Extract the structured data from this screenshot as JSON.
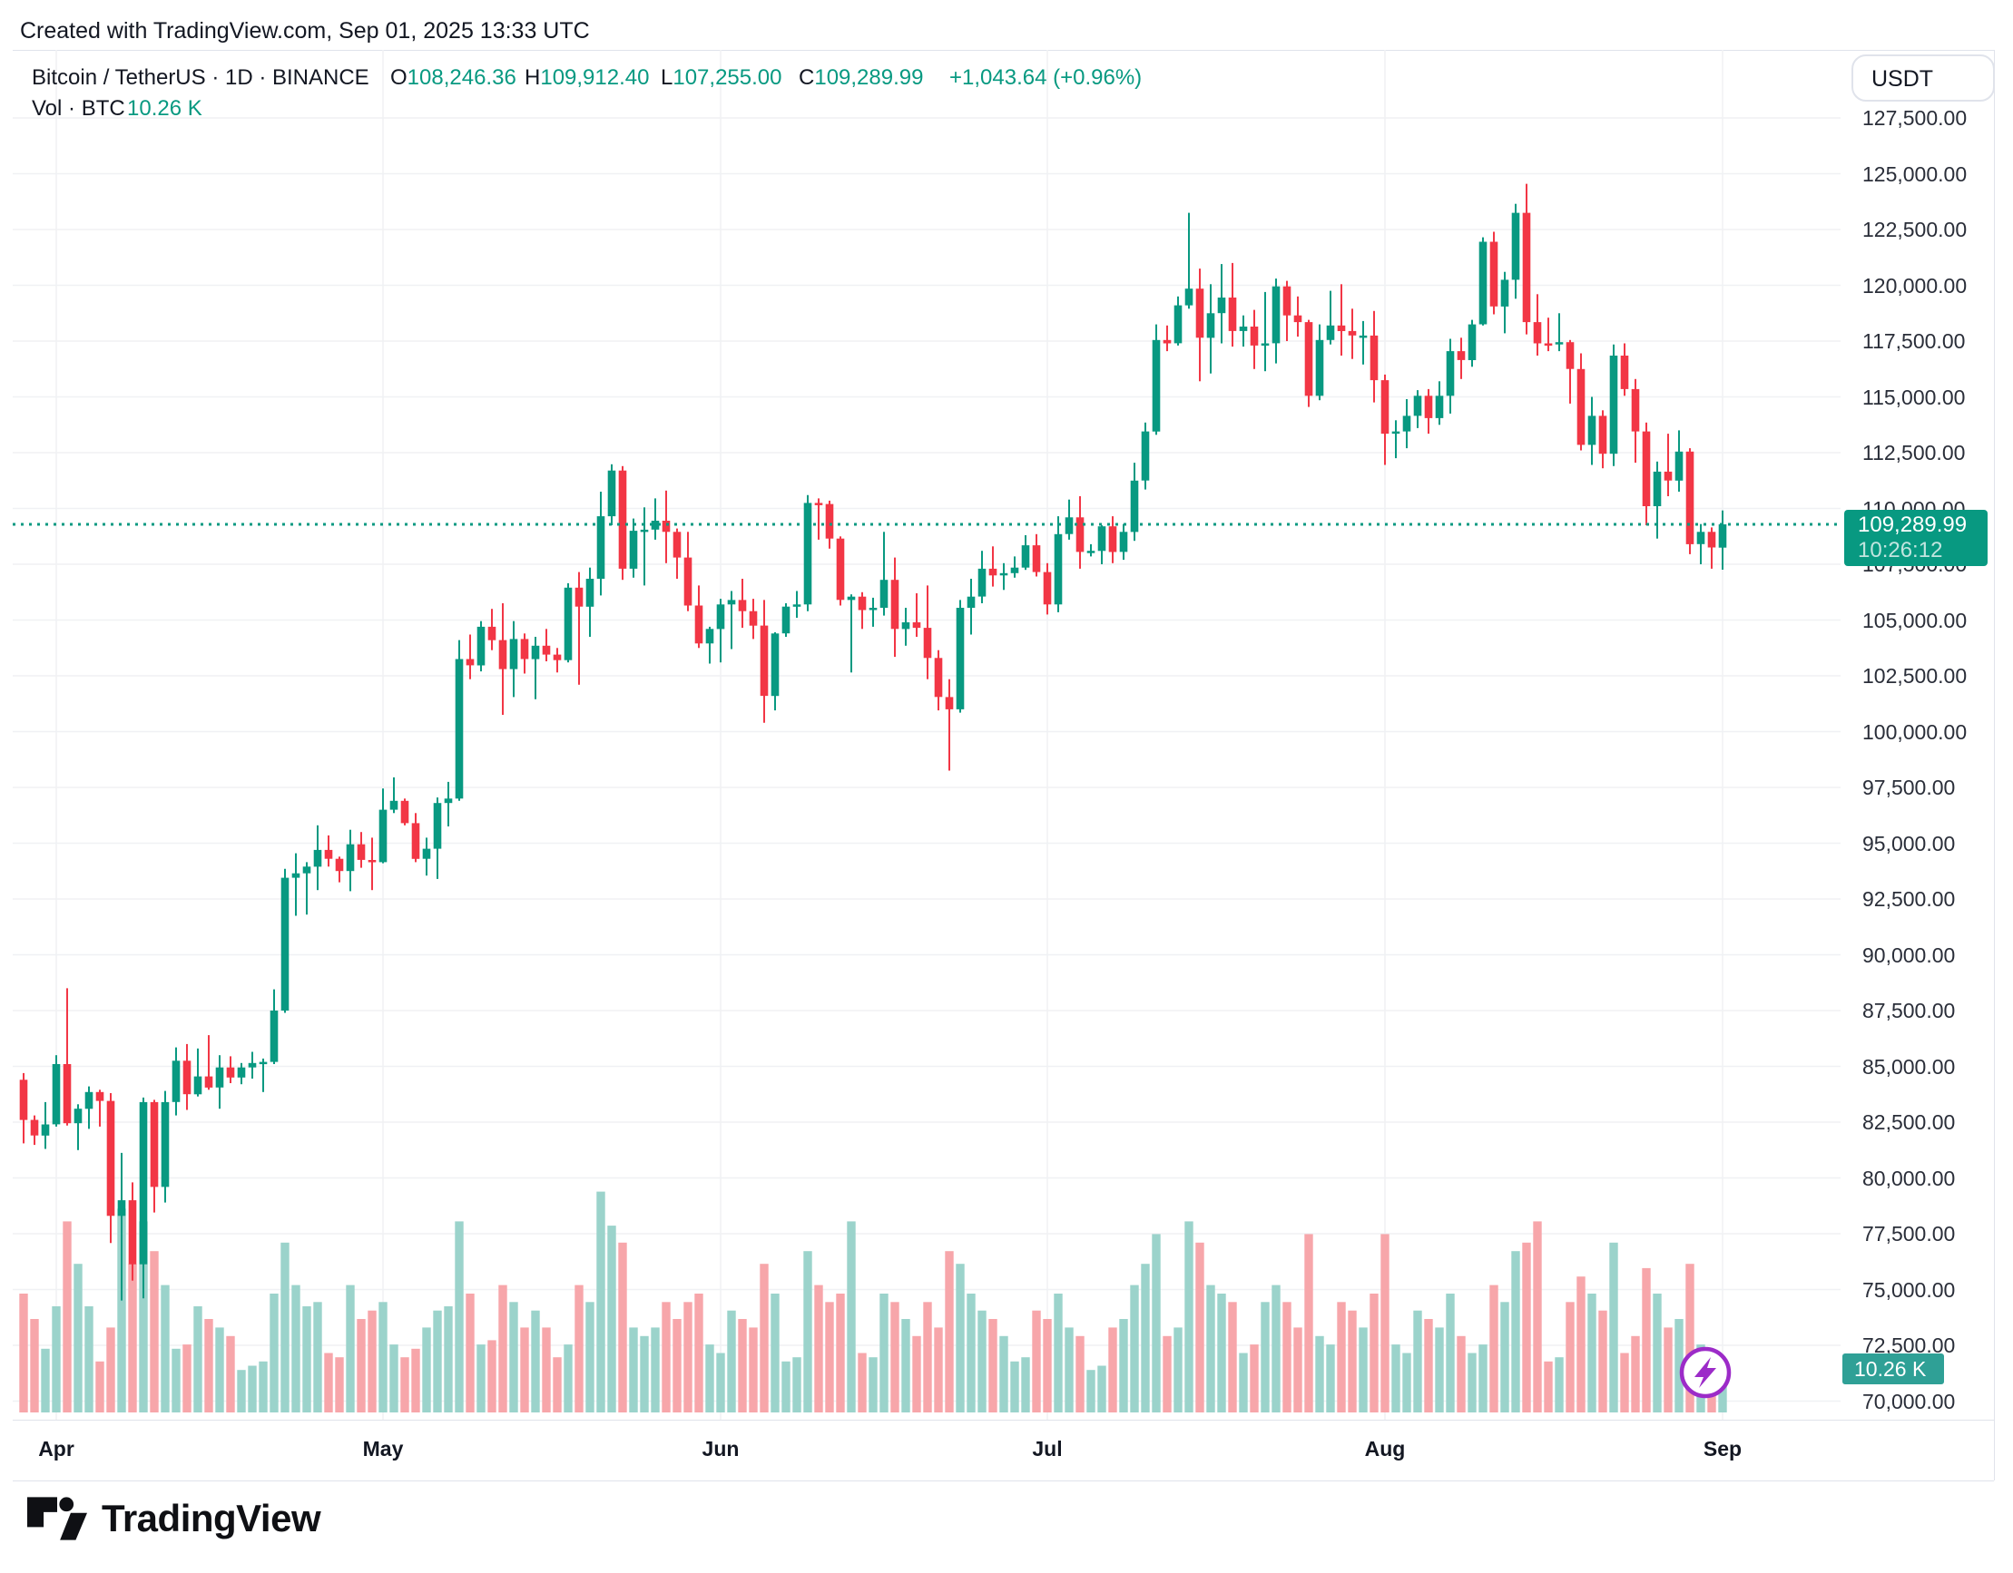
{
  "header": {
    "credit": "Created with TradingView.com, Sep 01, 2025 13:33 UTC"
  },
  "legend": {
    "symbol_title": "Bitcoin / TetherUS · 1D · BINANCE",
    "ohlc": {
      "o_label": "O",
      "o": "108,246.36",
      "h_label": "H",
      "h": "109,912.40",
      "l_label": "L",
      "l": "107,255.00",
      "c_label": "C",
      "c": "109,289.99",
      "change": "+1,043.64 (+0.96%)"
    },
    "volume_label": "Vol · BTC",
    "volume_value": "10.26 K"
  },
  "toolbar": {
    "currency_button": "USDT"
  },
  "price_axis": {
    "last_price_badge": {
      "price": "109,289.99",
      "countdown": "10:26:12"
    },
    "volume_badge": "10.26 K"
  },
  "time_axis": {
    "months": [
      "Apr",
      "May",
      "Jun",
      "Jul",
      "Aug",
      "Sep"
    ]
  },
  "footer": {
    "brand": "TradingView"
  },
  "colors": {
    "up": "#089981",
    "down": "#F23645",
    "vol_up": "#9BD3CB",
    "vol_down": "#F7A6AA",
    "grid": "#f0f1f4",
    "accent": "#089981",
    "marker_purple": "#9C2BC8",
    "axis_text": "#2a2e39"
  },
  "chart_data": {
    "type": "candlestick_with_volume",
    "title": "Bitcoin / TetherUS",
    "interval": "1D",
    "exchange": "BINANCE",
    "quote_currency": "USDT",
    "y_axis": {
      "min": 70000,
      "max": 127500,
      "tick_step": 2500,
      "grid": true
    },
    "volume_unit": "K BTC",
    "last_price": 109289.99,
    "price_line": {
      "value": 109289.99,
      "countdown": "10:26:12",
      "style": "dotted"
    },
    "month_ticks": {
      "labels": [
        "Apr",
        "May",
        "Jun",
        "Jul",
        "Aug",
        "Sep"
      ],
      "candle_indices": [
        3,
        33,
        64,
        94,
        125,
        156
      ]
    },
    "candles_format": [
      "open",
      "high",
      "low",
      "close",
      "volume_K"
    ],
    "candles": [
      [
        84400,
        84700,
        81550,
        82600,
        28
      ],
      [
        82600,
        82800,
        81480,
        81900,
        22
      ],
      [
        81900,
        83400,
        81300,
        82400,
        15
      ],
      [
        82400,
        85500,
        82300,
        85100,
        25
      ],
      [
        85100,
        88500,
        82350,
        82450,
        45
      ],
      [
        82450,
        83300,
        81250,
        83100,
        35
      ],
      [
        83100,
        84100,
        82200,
        83850,
        25
      ],
      [
        83850,
        83950,
        82300,
        83450,
        12
      ],
      [
        83450,
        83800,
        77080,
        78300,
        20
      ],
      [
        78300,
        81120,
        74508,
        79000,
        48
      ],
      [
        79000,
        79800,
        75400,
        76130,
        35
      ],
      [
        76130,
        83600,
        74600,
        83400,
        45
      ],
      [
        83400,
        83500,
        78450,
        79600,
        38
      ],
      [
        79600,
        83900,
        78900,
        83400,
        30
      ],
      [
        83400,
        85850,
        82800,
        85250,
        15
      ],
      [
        85250,
        86000,
        83050,
        83750,
        16
      ],
      [
        83750,
        85800,
        83650,
        84550,
        25
      ],
      [
        84550,
        86400,
        83950,
        84050,
        22
      ],
      [
        84050,
        85500,
        83100,
        84950,
        20
      ],
      [
        84950,
        85450,
        84250,
        84500,
        18
      ],
      [
        84500,
        85150,
        84200,
        84950,
        10
      ],
      [
        84950,
        85650,
        84450,
        85150,
        11
      ],
      [
        85150,
        85350,
        83850,
        85200,
        12
      ],
      [
        85200,
        88450,
        85100,
        87500,
        28
      ],
      [
        87500,
        93850,
        87400,
        93450,
        40
      ],
      [
        93450,
        94550,
        91750,
        93650,
        30
      ],
      [
        93650,
        94150,
        91800,
        93950,
        25
      ],
      [
        93950,
        95800,
        92900,
        94700,
        26
      ],
      [
        94700,
        95350,
        93950,
        94300,
        14
      ],
      [
        94300,
        94400,
        93250,
        93750,
        13
      ],
      [
        93750,
        95600,
        92850,
        94950,
        30
      ],
      [
        94950,
        95500,
        93900,
        94250,
        22
      ],
      [
        94250,
        95250,
        92900,
        94150,
        24
      ],
      [
        94150,
        97450,
        94100,
        96500,
        26
      ],
      [
        96500,
        97950,
        96350,
        96900,
        16
      ],
      [
        96900,
        97000,
        95800,
        95900,
        13
      ],
      [
        95900,
        96350,
        94150,
        94300,
        15
      ],
      [
        94300,
        95250,
        93550,
        94750,
        20
      ],
      [
        94750,
        97050,
        93400,
        96800,
        24
      ],
      [
        96800,
        97750,
        95750,
        97000,
        25
      ],
      [
        97000,
        104100,
        96900,
        103250,
        45
      ],
      [
        103250,
        104350,
        102350,
        102970,
        28
      ],
      [
        102970,
        104950,
        102700,
        104700,
        16
      ],
      [
        104700,
        105500,
        103650,
        104100,
        17
      ],
      [
        104100,
        105750,
        100750,
        102800,
        30
      ],
      [
        102800,
        104950,
        101550,
        104150,
        26
      ],
      [
        104150,
        104400,
        102600,
        103250,
        20
      ],
      [
        103250,
        104250,
        101450,
        103850,
        24
      ],
      [
        103850,
        104600,
        103150,
        103450,
        20
      ],
      [
        103450,
        103750,
        102650,
        103200,
        13
      ],
      [
        103200,
        106650,
        103100,
        106450,
        16
      ],
      [
        106450,
        107150,
        102100,
        105600,
        30
      ],
      [
        105600,
        107350,
        104250,
        106850,
        26
      ],
      [
        106850,
        110750,
        106100,
        109650,
        52
      ],
      [
        109650,
        111980,
        109250,
        111700,
        44
      ],
      [
        111700,
        111900,
        106800,
        107300,
        40
      ],
      [
        107300,
        109550,
        106900,
        109000,
        20
      ],
      [
        109000,
        110050,
        106550,
        109050,
        18
      ],
      [
        109050,
        110450,
        108600,
        109450,
        20
      ],
      [
        109450,
        110800,
        107550,
        108950,
        26
      ],
      [
        108950,
        109100,
        106850,
        107800,
        22
      ],
      [
        107800,
        108950,
        105400,
        105650,
        26
      ],
      [
        105650,
        106550,
        103750,
        103950,
        28
      ],
      [
        103950,
        104700,
        103050,
        104600,
        16
      ],
      [
        104600,
        105950,
        103100,
        105700,
        14
      ],
      [
        105700,
        106300,
        103700,
        105900,
        24
      ],
      [
        105900,
        106850,
        104650,
        105400,
        22
      ],
      [
        105400,
        105950,
        104150,
        104750,
        20
      ],
      [
        104750,
        105900,
        100400,
        101600,
        35
      ],
      [
        101600,
        104450,
        100950,
        104400,
        28
      ],
      [
        104400,
        105750,
        104250,
        105600,
        12
      ],
      [
        105600,
        106300,
        105100,
        105700,
        13
      ],
      [
        105700,
        110600,
        105400,
        110250,
        38
      ],
      [
        110250,
        110450,
        108600,
        110200,
        30
      ],
      [
        110200,
        110350,
        108200,
        108650,
        26
      ],
      [
        108650,
        108750,
        105650,
        105900,
        28
      ],
      [
        105900,
        106150,
        102650,
        106050,
        45
      ],
      [
        106050,
        106250,
        104600,
        105450,
        14
      ],
      [
        105450,
        106000,
        104700,
        105550,
        13
      ],
      [
        105550,
        108950,
        105200,
        106800,
        28
      ],
      [
        106800,
        107800,
        103350,
        104600,
        26
      ],
      [
        104600,
        105550,
        103850,
        104900,
        22
      ],
      [
        104900,
        106200,
        104250,
        104650,
        18
      ],
      [
        104650,
        106550,
        102350,
        103300,
        26
      ],
      [
        103300,
        103650,
        100950,
        101550,
        20
      ],
      [
        101550,
        102350,
        98250,
        101000,
        38
      ],
      [
        101000,
        105900,
        100850,
        105550,
        35
      ],
      [
        105550,
        106850,
        104350,
        106050,
        28
      ],
      [
        106050,
        108100,
        105750,
        107300,
        24
      ],
      [
        107300,
        108300,
        106500,
        107000,
        22
      ],
      [
        107000,
        107550,
        106350,
        107100,
        18
      ],
      [
        107100,
        107850,
        106900,
        107350,
        12
      ],
      [
        107350,
        108800,
        107250,
        108350,
        13
      ],
      [
        108350,
        108850,
        106950,
        107150,
        24
      ],
      [
        107150,
        107550,
        105250,
        105700,
        22
      ],
      [
        105700,
        109650,
        105350,
        108850,
        28
      ],
      [
        108850,
        110400,
        108600,
        109600,
        20
      ],
      [
        109600,
        110550,
        107300,
        108050,
        18
      ],
      [
        108050,
        108400,
        107850,
        108100,
        10
      ],
      [
        108100,
        109250,
        107500,
        109200,
        11
      ],
      [
        109200,
        109650,
        107550,
        108050,
        20
      ],
      [
        108050,
        109300,
        107700,
        108950,
        22
      ],
      [
        108950,
        112050,
        108550,
        111250,
        30
      ],
      [
        111250,
        113850,
        110850,
        113450,
        35
      ],
      [
        113450,
        118250,
        113300,
        117550,
        42
      ],
      [
        117550,
        118200,
        117050,
        117400,
        18
      ],
      [
        117400,
        119500,
        117300,
        119100,
        20
      ],
      [
        119100,
        123250,
        118950,
        119850,
        45
      ],
      [
        119850,
        120750,
        115700,
        117650,
        40
      ],
      [
        117650,
        120050,
        116050,
        118750,
        30
      ],
      [
        118750,
        120950,
        117400,
        119450,
        28
      ],
      [
        119450,
        121000,
        117250,
        117950,
        26
      ],
      [
        117950,
        118650,
        117250,
        118150,
        14
      ],
      [
        118150,
        118900,
        116250,
        117300,
        16
      ],
      [
        117300,
        119700,
        116150,
        117400,
        26
      ],
      [
        117400,
        120300,
        116500,
        119950,
        30
      ],
      [
        119950,
        120200,
        117500,
        118650,
        26
      ],
      [
        118650,
        119500,
        117700,
        118350,
        20
      ],
      [
        118350,
        118450,
        114550,
        115050,
        42
      ],
      [
        115050,
        118250,
        114850,
        117550,
        18
      ],
      [
        117550,
        119750,
        117350,
        118200,
        16
      ],
      [
        118200,
        120050,
        116850,
        117950,
        26
      ],
      [
        117950,
        118950,
        116700,
        117750,
        24
      ],
      [
        117750,
        118400,
        116450,
        117750,
        20
      ],
      [
        117750,
        118850,
        114750,
        115750,
        28
      ],
      [
        115750,
        116000,
        111950,
        113350,
        42
      ],
      [
        113350,
        113950,
        112250,
        113450,
        16
      ],
      [
        113450,
        114900,
        112700,
        114150,
        14
      ],
      [
        114150,
        115300,
        113600,
        115050,
        24
      ],
      [
        115050,
        115350,
        113350,
        114050,
        22
      ],
      [
        114050,
        115700,
        113750,
        115050,
        20
      ],
      [
        115050,
        117600,
        114250,
        117050,
        28
      ],
      [
        117050,
        117650,
        115800,
        116650,
        18
      ],
      [
        116650,
        118450,
        116350,
        118250,
        14
      ],
      [
        118250,
        122150,
        118200,
        121950,
        16
      ],
      [
        121950,
        122400,
        118700,
        119050,
        30
      ],
      [
        119050,
        120600,
        117850,
        120250,
        26
      ],
      [
        120250,
        123650,
        119400,
        123250,
        38
      ],
      [
        123250,
        124550,
        117800,
        118350,
        40
      ],
      [
        118350,
        119600,
        116850,
        117400,
        45
      ],
      [
        117400,
        118550,
        117050,
        117350,
        12
      ],
      [
        117350,
        118750,
        117050,
        117450,
        13
      ],
      [
        117450,
        117550,
        114700,
        116250,
        26
      ],
      [
        116250,
        116950,
        112600,
        112850,
        32
      ],
      [
        112850,
        115000,
        111950,
        114150,
        28
      ],
      [
        114150,
        114400,
        111800,
        112450,
        24
      ],
      [
        112450,
        117350,
        111900,
        116850,
        40
      ],
      [
        116850,
        117400,
        115050,
        115350,
        14
      ],
      [
        115350,
        115800,
        112050,
        113450,
        18
      ],
      [
        113450,
        113850,
        109250,
        110100,
        34
      ],
      [
        110100,
        112100,
        108650,
        111650,
        28
      ],
      [
        111650,
        113350,
        110550,
        111250,
        20
      ],
      [
        111250,
        113500,
        110750,
        112550,
        22
      ],
      [
        112550,
        112700,
        107950,
        108400,
        35
      ],
      [
        108400,
        109300,
        107500,
        108950,
        16
      ],
      [
        108950,
        109150,
        107300,
        108250,
        12
      ],
      [
        108246.36,
        109912.4,
        107255.0,
        109289.99,
        10.26
      ]
    ]
  }
}
